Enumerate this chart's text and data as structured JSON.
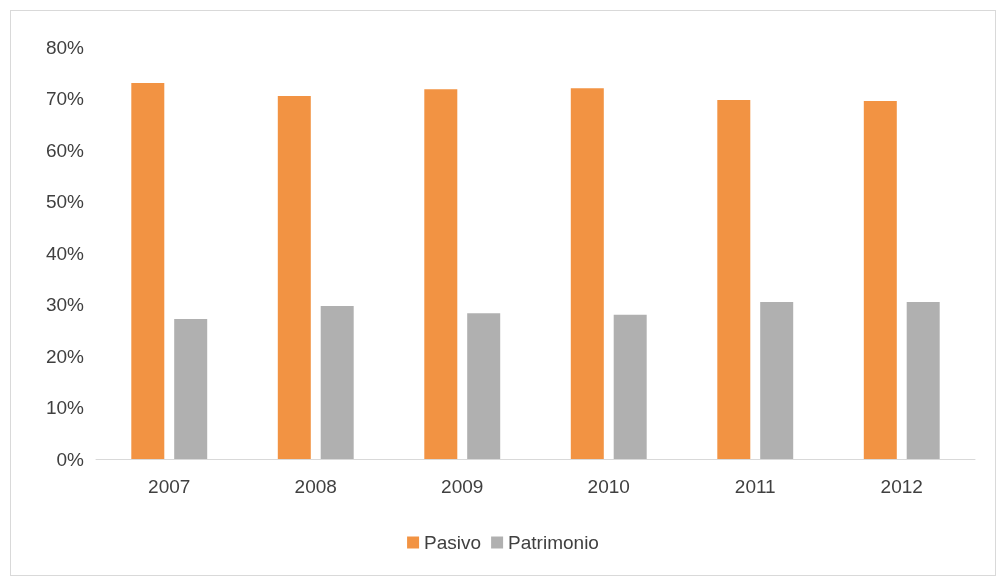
{
  "chart_data": {
    "type": "bar",
    "categories": [
      "2007",
      "2008",
      "2009",
      "2010",
      "2011",
      "2012"
    ],
    "series": [
      {
        "name": "Pasivo",
        "color": "#f29343",
        "values": [
          73.0,
          70.5,
          71.8,
          72.0,
          69.7,
          69.5
        ]
      },
      {
        "name": "Patrimonio",
        "color": "#b0b0b0",
        "values": [
          27.2,
          29.7,
          28.3,
          28.0,
          30.5,
          30.5
        ]
      }
    ],
    "ylim": [
      0,
      80
    ],
    "yticks": [
      {
        "value": 0,
        "label": "0%"
      },
      {
        "value": 10,
        "label": "10%"
      },
      {
        "value": 20,
        "label": "20%"
      },
      {
        "value": 30,
        "label": "30%"
      },
      {
        "value": 40,
        "label": "40%"
      },
      {
        "value": 50,
        "label": "50%"
      },
      {
        "value": 60,
        "label": "60%"
      },
      {
        "value": 70,
        "label": "70%"
      },
      {
        "value": 80,
        "label": "80%"
      }
    ],
    "grid": false,
    "legend": "bottom"
  }
}
